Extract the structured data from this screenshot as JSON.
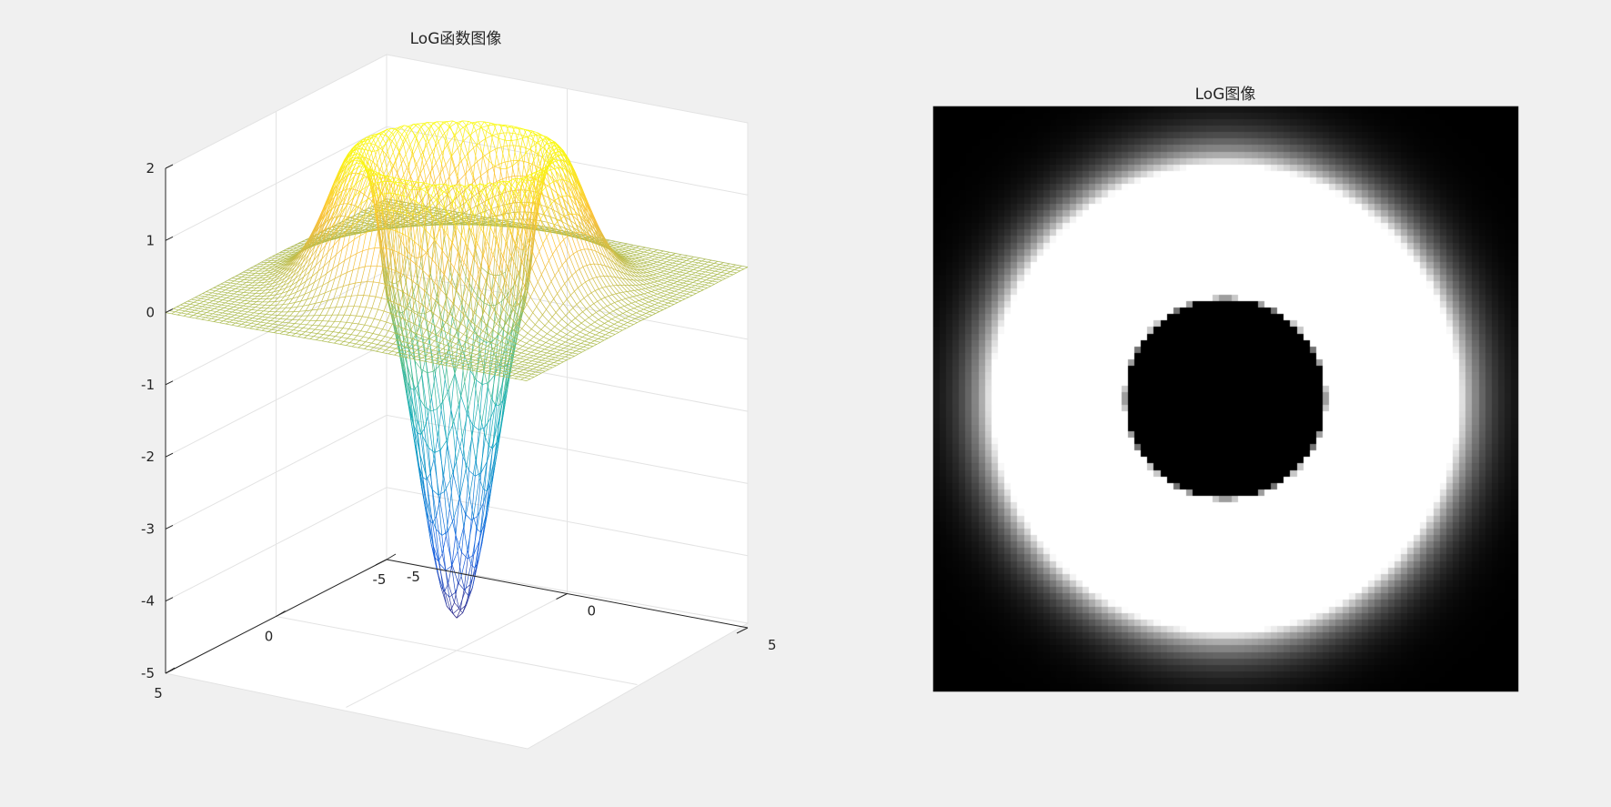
{
  "figure": {
    "background": "#f0f0f0",
    "colormap": "parula"
  },
  "chart_data": [
    {
      "type": "surface",
      "title": "LoG函数图像",
      "xlim": [
        -5,
        5
      ],
      "ylim": [
        -5,
        5
      ],
      "zlim": [
        -5,
        2
      ],
      "x_ticks": [
        "5",
        "0",
        "-5"
      ],
      "y_ticks": [
        "-5",
        "0",
        "5"
      ],
      "z_ticks": [
        "2",
        "1",
        "0",
        "-1",
        "-2",
        "-3",
        "-4",
        "-5"
      ],
      "function": "LoG",
      "z_min": -4.55,
      "ring_max": 1.9,
      "grid": true,
      "style": "mesh"
    },
    {
      "type": "heatmap",
      "title": "LoG图像",
      "colormap": "gray",
      "content": "white ring on black background, black disc in center",
      "grid": false
    }
  ]
}
